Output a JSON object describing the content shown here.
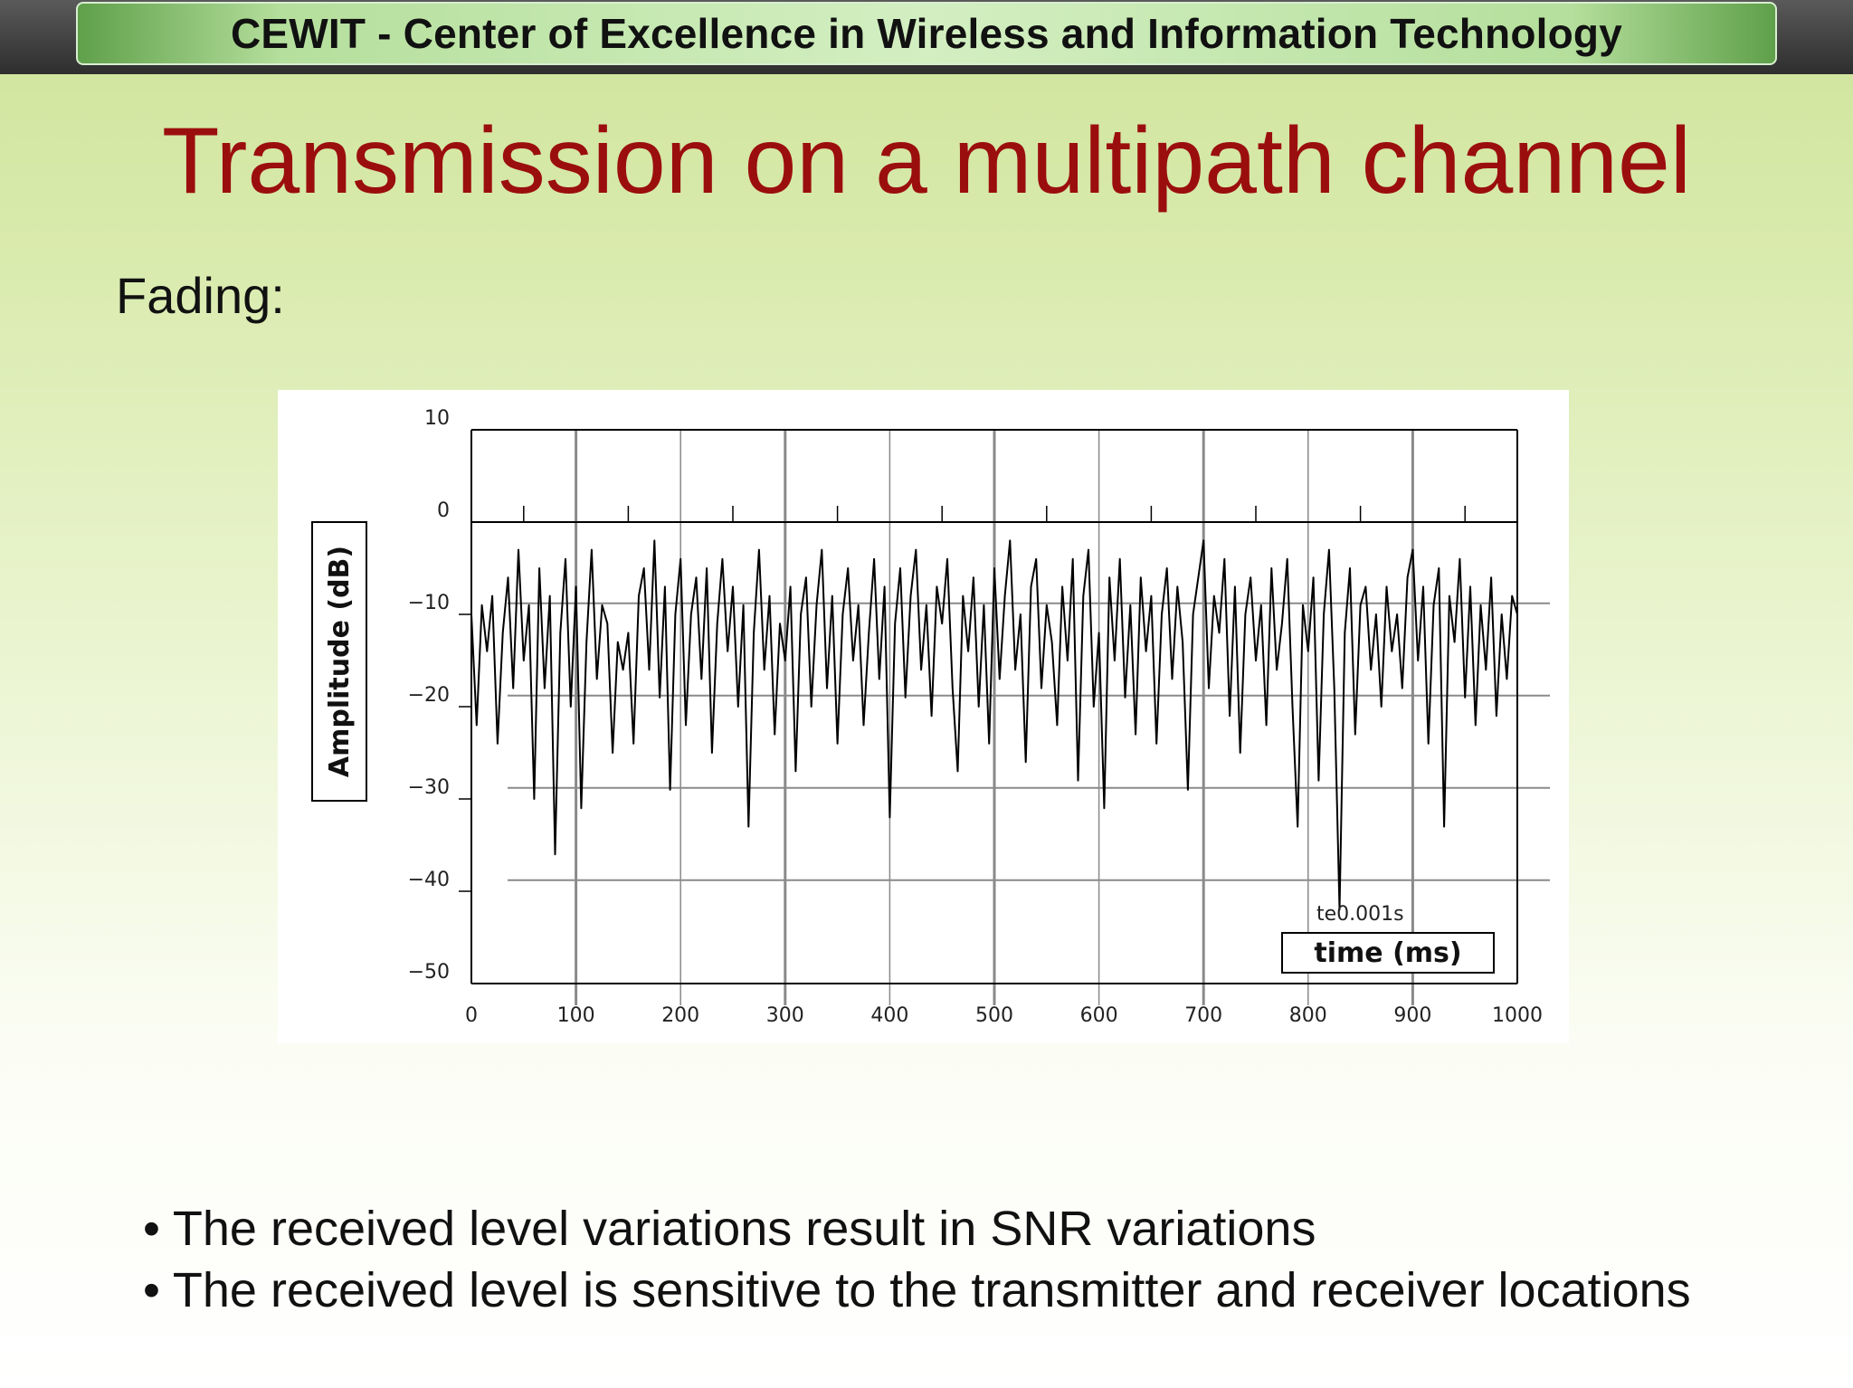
{
  "header": {
    "banner_text": "CEWIT - Center of Excellence in Wireless and Information Technology"
  },
  "slide": {
    "title": "Transmission on a multipath channel",
    "subheading": "Fading:",
    "bullets": [
      "The received level variations result in SNR variations",
      "The received level is sensitive to the transmitter and receiver locations"
    ]
  },
  "colors": {
    "title": "#9b0e0e",
    "signal": "#000000",
    "grid": "#8a8a8a"
  },
  "chart_data": {
    "type": "line",
    "title": "",
    "xlabel": "time (ms)",
    "ylabel": "Amplitude (dB)",
    "xlim": [
      0,
      1000
    ],
    "ylim": [
      -50,
      10
    ],
    "x_ticks": [
      0,
      100,
      200,
      300,
      400,
      500,
      600,
      700,
      800,
      900,
      1000
    ],
    "y_ticks": [
      10,
      0,
      -10,
      -20,
      -30,
      -40,
      -50
    ],
    "annotation": "te0.001s",
    "grid": true,
    "legend": "none",
    "series": [
      {
        "x": [
          0,
          5,
          10,
          15,
          20,
          25,
          30,
          35,
          40,
          45,
          50,
          55,
          60,
          65,
          70,
          75,
          80,
          85,
          90,
          95,
          100,
          105,
          110,
          115,
          120,
          125,
          130,
          135,
          140,
          145,
          150,
          155,
          160,
          165,
          170,
          175,
          180,
          185,
          190,
          195,
          200,
          205,
          210,
          215,
          220,
          225,
          230,
          235,
          240,
          245,
          250,
          255,
          260,
          265,
          270,
          275,
          280,
          285,
          290,
          295,
          300,
          305,
          310,
          315,
          320,
          325,
          330,
          335,
          340,
          345,
          350,
          355,
          360,
          365,
          370,
          375,
          380,
          385,
          390,
          395,
          400,
          405,
          410,
          415,
          420,
          425,
          430,
          435,
          440,
          445,
          450,
          455,
          460,
          465,
          470,
          475,
          480,
          485,
          490,
          495,
          500,
          505,
          510,
          515,
          520,
          525,
          530,
          535,
          540,
          545,
          550,
          555,
          560,
          565,
          570,
          575,
          580,
          585,
          590,
          595,
          600,
          605,
          610,
          615,
          620,
          625,
          630,
          635,
          640,
          645,
          650,
          655,
          660,
          665,
          670,
          675,
          680,
          685,
          690,
          695,
          700,
          705,
          710,
          715,
          720,
          725,
          730,
          735,
          740,
          745,
          750,
          755,
          760,
          765,
          770,
          775,
          780,
          785,
          790,
          795,
          800,
          805,
          810,
          815,
          820,
          825,
          830,
          835,
          840,
          845,
          850,
          855,
          860,
          865,
          870,
          875,
          880,
          885,
          890,
          895,
          900,
          905,
          910,
          915,
          920,
          925,
          930,
          935,
          940,
          945,
          950,
          955,
          960,
          965,
          970,
          975,
          980,
          985,
          990,
          995,
          1000
        ],
        "values": [
          -10,
          -22,
          -9,
          -14,
          -8,
          -24,
          -12,
          -6,
          -18,
          -3,
          -15,
          -9,
          -30,
          -5,
          -18,
          -8,
          -36,
          -12,
          -4,
          -20,
          -7,
          -31,
          -13,
          -3,
          -17,
          -9,
          -11,
          -25,
          -13,
          -16,
          -12,
          -24,
          -8,
          -5,
          -16,
          -2,
          -19,
          -7,
          -29,
          -10,
          -4,
          -22,
          -10,
          -6,
          -17,
          -5,
          -25,
          -11,
          -4,
          -14,
          -7,
          -20,
          -9,
          -33,
          -12,
          -3,
          -16,
          -8,
          -23,
          -11,
          -15,
          -7,
          -27,
          -10,
          -6,
          -20,
          -9,
          -3,
          -18,
          -8,
          -24,
          -10,
          -5,
          -15,
          -9,
          -22,
          -12,
          -4,
          -17,
          -7,
          -32,
          -11,
          -5,
          -19,
          -8,
          -3,
          -16,
          -9,
          -21,
          -7,
          -11,
          -4,
          -18,
          -27,
          -8,
          -14,
          -6,
          -20,
          -9,
          -24,
          -5,
          -17,
          -8,
          -2,
          -16,
          -10,
          -26,
          -7,
          -4,
          -18,
          -9,
          -13,
          -22,
          -7,
          -15,
          -4,
          -28,
          -8,
          -3,
          -20,
          -12,
          -31,
          -6,
          -15,
          -4,
          -19,
          -9,
          -23,
          -6,
          -14,
          -8,
          -24,
          -10,
          -5,
          -17,
          -7,
          -13,
          -29,
          -10,
          -6,
          -2,
          -18,
          -8,
          -12,
          -4,
          -21,
          -7,
          -25,
          -10,
          -6,
          -15,
          -9,
          -22,
          -5,
          -16,
          -11,
          -4,
          -20,
          -33,
          -9,
          -14,
          -6,
          -28,
          -10,
          -3,
          -18,
          -42,
          -12,
          -5,
          -23,
          -9,
          -7,
          -16,
          -10,
          -20,
          -7,
          -14,
          -10,
          -18,
          -6,
          -3,
          -15,
          -7,
          -24,
          -9,
          -5,
          -33,
          -8,
          -13,
          -4,
          -19,
          -7,
          -22,
          -9,
          -16,
          -6,
          -21,
          -10,
          -17,
          -8,
          -10
        ]
      }
    ]
  }
}
